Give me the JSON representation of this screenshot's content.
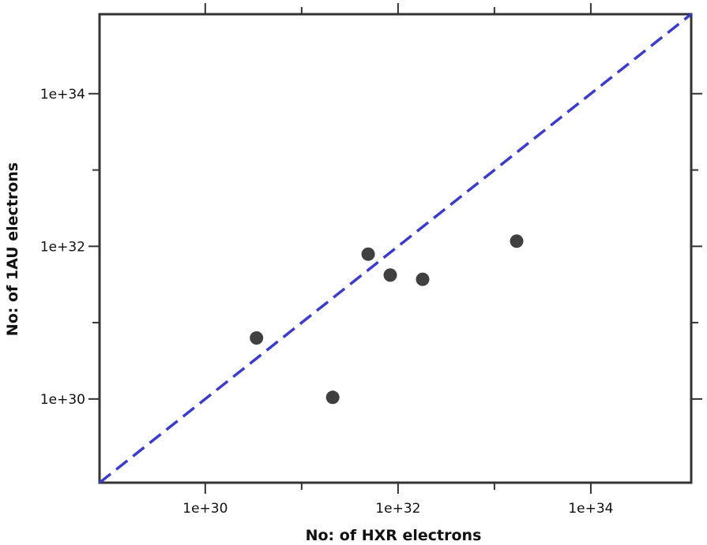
{
  "chart_data": {
    "type": "scatter",
    "title": "",
    "xlabel": "No: of HXR electrons",
    "ylabel": "No: of 1AU electrons",
    "x_scale": "log",
    "y_scale": "log",
    "xlim": [
      8e+28,
      1.1e+35
    ],
    "ylim": [
      8e+28,
      1.1e+35
    ],
    "x_ticks": [
      {
        "value": 1e+30,
        "label": "1e+30"
      },
      {
        "value": 1e+32,
        "label": "1e+32"
      },
      {
        "value": 1e+34,
        "label": "1e+34"
      }
    ],
    "y_ticks": [
      {
        "value": 1e+30,
        "label": "1e+30"
      },
      {
        "value": 1e+32,
        "label": "1e+32"
      },
      {
        "value": 1e+34,
        "label": "1e+34"
      }
    ],
    "x_minor_ticks": [
      1e+31,
      1e+33
    ],
    "y_minor_ticks": [
      1e+31,
      1e+33
    ],
    "grid": false,
    "points": [
      {
        "x": 3.4e+30,
        "y": 6.3e+30
      },
      {
        "x": 2.1e+31,
        "y": 1.05e+30
      },
      {
        "x": 4.9e+31,
        "y": 7.9e+31
      },
      {
        "x": 8.3e+31,
        "y": 4.2e+31
      },
      {
        "x": 1.8e+32,
        "y": 3.7e+31
      },
      {
        "x": 1.7e+33,
        "y": 1.17e+32
      }
    ],
    "reference_line": {
      "type": "y=x",
      "style": "dashed"
    },
    "colors": {
      "points": "#404040",
      "reference_line": "#3b3bcc",
      "axes": "#333333"
    }
  }
}
